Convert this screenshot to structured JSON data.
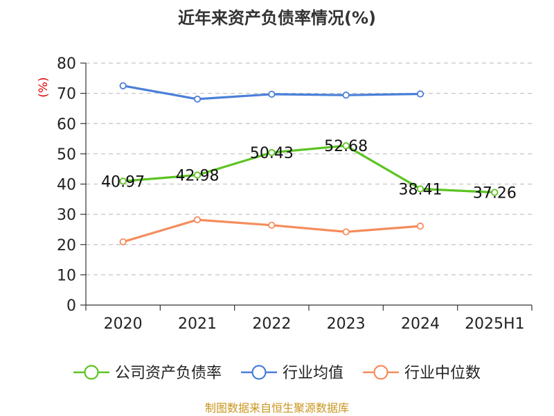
{
  "chart_data": {
    "type": "line",
    "title": "近年来资产负债率情况(%)",
    "ylabel": "(%)",
    "xlabel": "",
    "categories": [
      "2020",
      "2021",
      "2022",
      "2023",
      "2024",
      "2025H1"
    ],
    "ylim": [
      0,
      80
    ],
    "yticks": [
      0,
      10,
      20,
      30,
      40,
      50,
      60,
      70,
      80
    ],
    "grid": true,
    "legend_position": "bottom",
    "series": [
      {
        "name": "公司资产负债率",
        "color": "#5cc321",
        "values": [
          40.97,
          42.98,
          50.43,
          52.68,
          38.41,
          37.26
        ],
        "show_labels": true
      },
      {
        "name": "行业均值",
        "color": "#4a7fd8",
        "values": [
          72.5,
          68.1,
          69.7,
          69.4,
          69.8,
          null
        ],
        "show_labels": false
      },
      {
        "name": "行业中位数",
        "color": "#f58c5c",
        "values": [
          20.9,
          28.2,
          26.4,
          24.2,
          26.1,
          null
        ],
        "show_labels": false
      }
    ],
    "data_labels": [
      "40.97",
      "42.98",
      "50.43",
      "52.68",
      "38.41",
      "37.26"
    ]
  },
  "source": "制图数据来自恒生聚源数据库"
}
